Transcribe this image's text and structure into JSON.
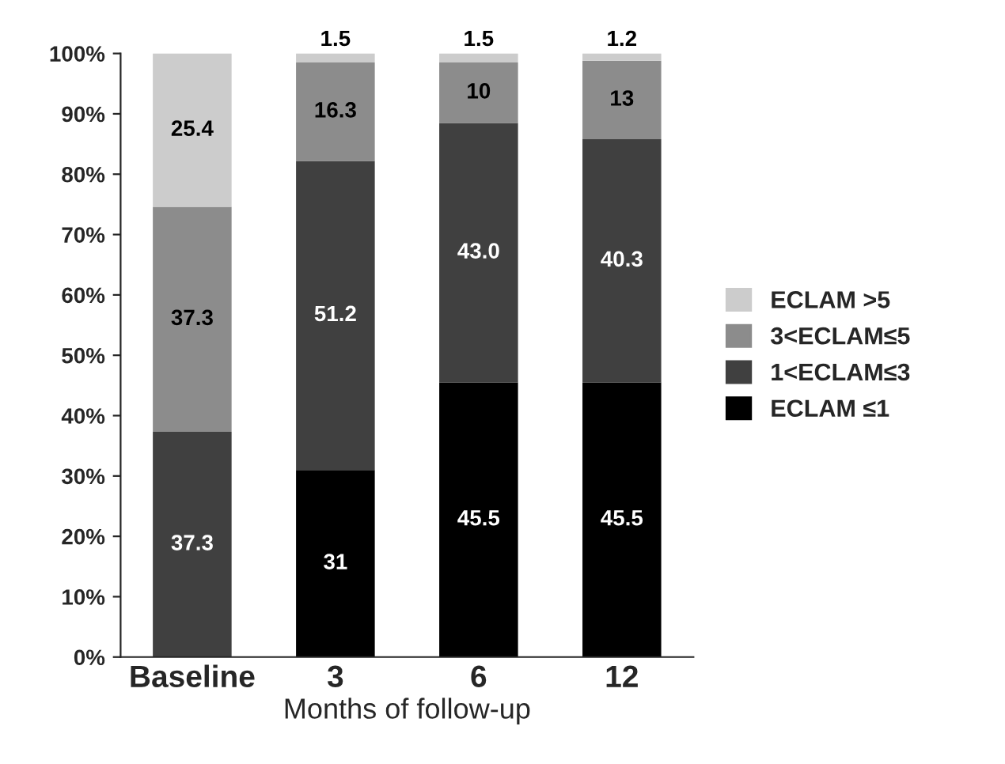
{
  "chart_data": {
    "type": "bar",
    "stacked": true,
    "xlabel": "Months of follow-up",
    "categories": [
      "Baseline",
      "3",
      "6",
      "12"
    ],
    "series": [
      {
        "name": "ECLAM ≤1",
        "color": "#000000",
        "values": [
          0,
          31,
          45.5,
          45.5
        ],
        "value_labels": [
          null,
          "31",
          "45.5",
          "45.5"
        ]
      },
      {
        "name": "1<ECLAM≤3",
        "color": "#404040",
        "values": [
          37.3,
          51.2,
          43.0,
          40.3
        ],
        "value_labels": [
          "37.3",
          "51.2",
          "43.0",
          "40.3"
        ]
      },
      {
        "name": "3<ECLAM≤5",
        "color": "#8c8c8c",
        "values": [
          37.3,
          16.3,
          10,
          13
        ],
        "value_labels": [
          "37.3",
          "16.3",
          "10",
          "13"
        ]
      },
      {
        "name": "ECLAM >5",
        "color": "#cccccc",
        "values": [
          25.4,
          1.5,
          1.5,
          1.2
        ],
        "value_labels": [
          "25.4",
          "1.5",
          "1.5",
          "1.2"
        ]
      }
    ],
    "ylim": [
      0,
      100
    ],
    "yticks": [
      {
        "value": 0,
        "label": "0%"
      },
      {
        "value": 10,
        "label": "10%"
      },
      {
        "value": 20,
        "label": "20%"
      },
      {
        "value": 30,
        "label": "30%"
      },
      {
        "value": 40,
        "label": "40%"
      },
      {
        "value": 50,
        "label": "50%"
      },
      {
        "value": 60,
        "label": "60%"
      },
      {
        "value": 70,
        "label": "70%"
      },
      {
        "value": 80,
        "label": "80%"
      },
      {
        "value": 90,
        "label": "90%"
      },
      {
        "value": 100,
        "label": "100%"
      }
    ],
    "grid": false,
    "legend": "right"
  }
}
